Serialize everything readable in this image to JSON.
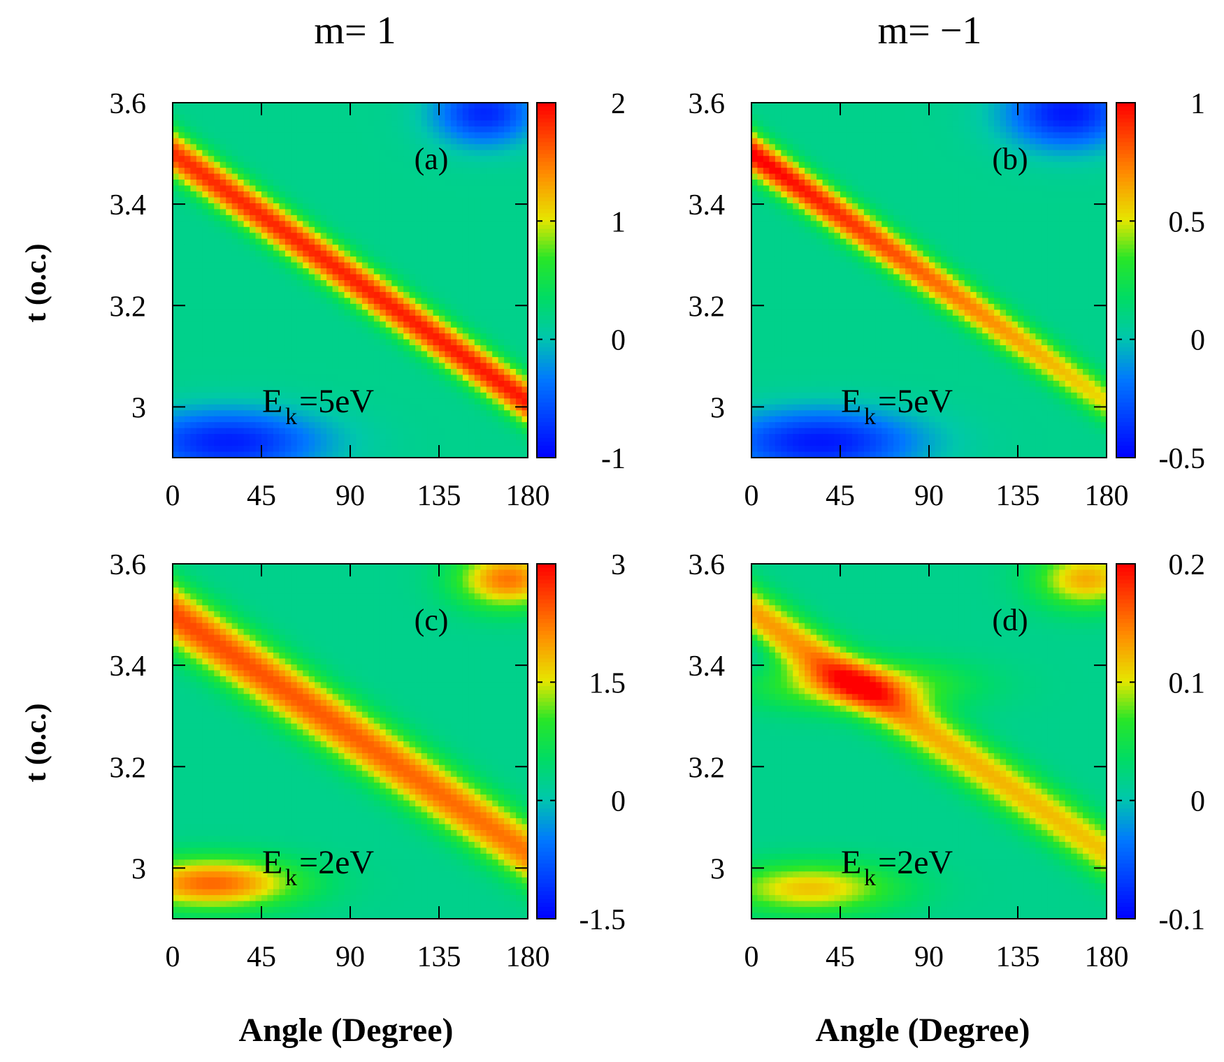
{
  "figure": {
    "column_titles": [
      "m= 1",
      "m= −1"
    ],
    "ylabel": "t (o.c.)",
    "xlabel": "Angle (Degree)"
  },
  "chart_data": [
    {
      "type": "heatmap",
      "panel_label": "(a)",
      "column_title": "m= 1",
      "annotation_main": "E",
      "annotation_sub": "k",
      "annotation_tail": "=5eV",
      "x": {
        "label": "Angle (Degree)",
        "range": [
          0,
          180
        ],
        "ticks": [
          0,
          45,
          90,
          135,
          180
        ],
        "tick_labels": [
          "0",
          "45",
          "90",
          "135",
          "180"
        ]
      },
      "y": {
        "label": "t (o.c.)",
        "range": [
          2.9,
          3.6
        ],
        "ticks": [
          3.0,
          3.2,
          3.4,
          3.6
        ],
        "tick_labels": [
          "3",
          "3.2",
          "3.4",
          "3.6"
        ]
      },
      "colorbar": {
        "range": [
          -1,
          2
        ],
        "ticks": [
          -1,
          0,
          1,
          2
        ],
        "tick_labels": [
          "-1",
          "0",
          "1",
          "2"
        ]
      },
      "features": [
        {
          "kind": "ridge",
          "from": [
            0,
            3.5
          ],
          "to": [
            180,
            3.01
          ],
          "peak": 1.65,
          "peak_end": 1.75,
          "width_t": 0.032
        },
        {
          "kind": "blob",
          "center": [
            28,
            2.93
          ],
          "value": -1.0,
          "size": [
            34,
            0.045
          ],
          "angle": -20
        },
        {
          "kind": "blob",
          "center": [
            158,
            3.58
          ],
          "value": -0.95,
          "size": [
            18,
            0.045
          ],
          "angle": -40
        }
      ]
    },
    {
      "type": "heatmap",
      "panel_label": "(b)",
      "column_title": "m= −1",
      "annotation_main": "E",
      "annotation_sub": "k",
      "annotation_tail": "=5eV",
      "x": {
        "label": "Angle (Degree)",
        "range": [
          0,
          180
        ],
        "ticks": [
          0,
          45,
          90,
          135,
          180
        ],
        "tick_labels": [
          "0",
          "45",
          "90",
          "135",
          "180"
        ]
      },
      "y": {
        "label": "t (o.c.)",
        "range": [
          2.9,
          3.6
        ],
        "ticks": [
          3.0,
          3.2,
          3.4,
          3.6
        ],
        "tick_labels": [
          "3",
          "3.2",
          "3.4",
          "3.6"
        ]
      },
      "colorbar": {
        "range": [
          -0.5,
          1
        ],
        "ticks": [
          -0.5,
          0,
          0.5,
          1
        ],
        "tick_labels": [
          "-0.5",
          "0",
          "0.5",
          "1"
        ]
      },
      "features": [
        {
          "kind": "ridge",
          "from": [
            0,
            3.5
          ],
          "to": [
            180,
            3.01
          ],
          "peak": 0.95,
          "peak_end": 0.45,
          "width_t": 0.03
        },
        {
          "kind": "blob",
          "center": [
            35,
            2.93
          ],
          "value": -0.52,
          "size": [
            35,
            0.045
          ],
          "angle": -20
        },
        {
          "kind": "blob",
          "center": [
            160,
            3.58
          ],
          "value": -0.52,
          "size": [
            22,
            0.05
          ],
          "angle": -40
        }
      ]
    },
    {
      "type": "heatmap",
      "panel_label": "(c)",
      "column_title": "m= 1",
      "annotation_main": "E",
      "annotation_sub": "k",
      "annotation_tail": "=2eV",
      "x": {
        "label": "Angle (Degree)",
        "range": [
          0,
          180
        ],
        "ticks": [
          0,
          45,
          90,
          135,
          180
        ],
        "tick_labels": [
          "0",
          "45",
          "90",
          "135",
          "180"
        ]
      },
      "y": {
        "label": "t (o.c.)",
        "range": [
          2.9,
          3.6
        ],
        "ticks": [
          3.0,
          3.2,
          3.4,
          3.6
        ],
        "tick_labels": [
          "3",
          "3.2",
          "3.4",
          "3.6"
        ]
      },
      "colorbar": {
        "range": [
          -1.5,
          3
        ],
        "ticks": [
          -1.5,
          0,
          1.5,
          3
        ],
        "tick_labels": [
          "-1.5",
          "0",
          "1.5",
          "3"
        ]
      },
      "features": [
        {
          "kind": "ridge",
          "from": [
            0,
            3.5
          ],
          "to": [
            180,
            3.03
          ],
          "peak": 2.3,
          "peak_end": 2.0,
          "width_t": 0.045
        },
        {
          "kind": "blob",
          "center": [
            20,
            2.97
          ],
          "value": 2.1,
          "size": [
            30,
            0.035
          ],
          "angle": -20
        },
        {
          "kind": "blob",
          "center": [
            170,
            3.57
          ],
          "value": 2.0,
          "size": [
            18,
            0.04
          ],
          "angle": -40
        }
      ]
    },
    {
      "type": "heatmap",
      "panel_label": "(d)",
      "column_title": "m= −1",
      "annotation_main": "E",
      "annotation_sub": "k",
      "annotation_tail": "=2eV",
      "x": {
        "label": "Angle (Degree)",
        "range": [
          0,
          180
        ],
        "ticks": [
          0,
          45,
          90,
          135,
          180
        ],
        "tick_labels": [
          "0",
          "45",
          "90",
          "135",
          "180"
        ]
      },
      "y": {
        "label": "t (o.c.)",
        "range": [
          2.9,
          3.6
        ],
        "ticks": [
          3.0,
          3.2,
          3.4,
          3.6
        ],
        "tick_labels": [
          "3",
          "3.2",
          "3.4",
          "3.6"
        ]
      },
      "colorbar": {
        "range": [
          -0.1,
          0.2
        ],
        "ticks": [
          -0.1,
          0,
          0.1,
          0.2
        ],
        "tick_labels": [
          "-0.1",
          "0",
          "0.1",
          "0.2"
        ]
      },
      "features": [
        {
          "kind": "ridge",
          "from": [
            5,
            3.49
          ],
          "to": [
            180,
            3.03
          ],
          "peak": 0.12,
          "peak_end": 0.1,
          "width_t": 0.04
        },
        {
          "kind": "blob",
          "center": [
            55,
            3.36
          ],
          "value": 0.09,
          "size": [
            35,
            0.035
          ],
          "angle": -25
        },
        {
          "kind": "blob",
          "center": [
            30,
            2.96
          ],
          "value": 0.1,
          "size": [
            30,
            0.035
          ],
          "angle": -20
        },
        {
          "kind": "blob",
          "center": [
            170,
            3.57
          ],
          "value": 0.11,
          "size": [
            18,
            0.04
          ],
          "angle": -40
        },
        {
          "kind": "blob",
          "center": [
            2,
            3.43
          ],
          "value": -0.02,
          "size": [
            6,
            0.03
          ],
          "angle": -20
        }
      ]
    }
  ]
}
